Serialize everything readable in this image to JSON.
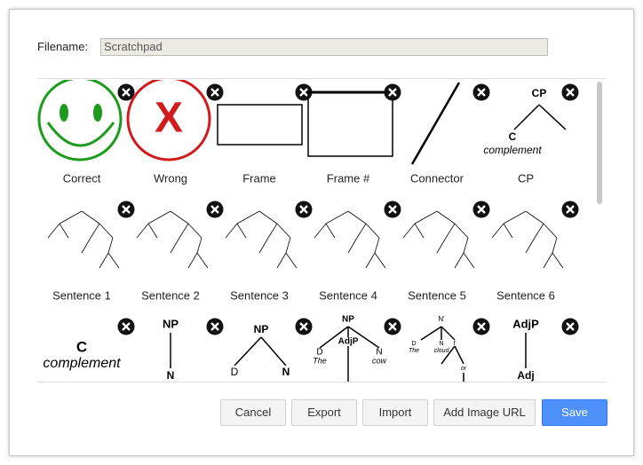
{
  "dialog": {
    "filename_label": "Filename:",
    "filename_value": "Scratchpad",
    "items": [
      {
        "label": "Correct"
      },
      {
        "label": "Wrong",
        "texts": [
          "X"
        ]
      },
      {
        "label": "Frame"
      },
      {
        "label": "Frame #"
      },
      {
        "label": "Connector"
      },
      {
        "label": "CP",
        "texts": [
          "CP",
          "C",
          "complement"
        ]
      },
      {
        "label": "Sentence 1"
      },
      {
        "label": "Sentence 2"
      },
      {
        "label": "Sentence 3"
      },
      {
        "label": "Sentence 4"
      },
      {
        "label": "Sentence 5"
      },
      {
        "label": "Sentence 6"
      },
      {
        "texts": [
          "C",
          "complement"
        ]
      },
      {
        "texts": [
          "NP",
          "N"
        ]
      },
      {
        "texts": [
          "NP",
          "D",
          "N"
        ]
      },
      {
        "texts": [
          "NP",
          "D",
          "The",
          "AdjP",
          "N",
          "cow"
        ]
      },
      {
        "texts": [
          "N'",
          "D",
          "The",
          "N",
          "cloud",
          "I'",
          "or"
        ]
      },
      {
        "texts": [
          "AdjP",
          "Adj"
        ]
      }
    ],
    "buttons": [
      "Cancel",
      "Export",
      "Import",
      "Add Image URL",
      "Save"
    ]
  }
}
